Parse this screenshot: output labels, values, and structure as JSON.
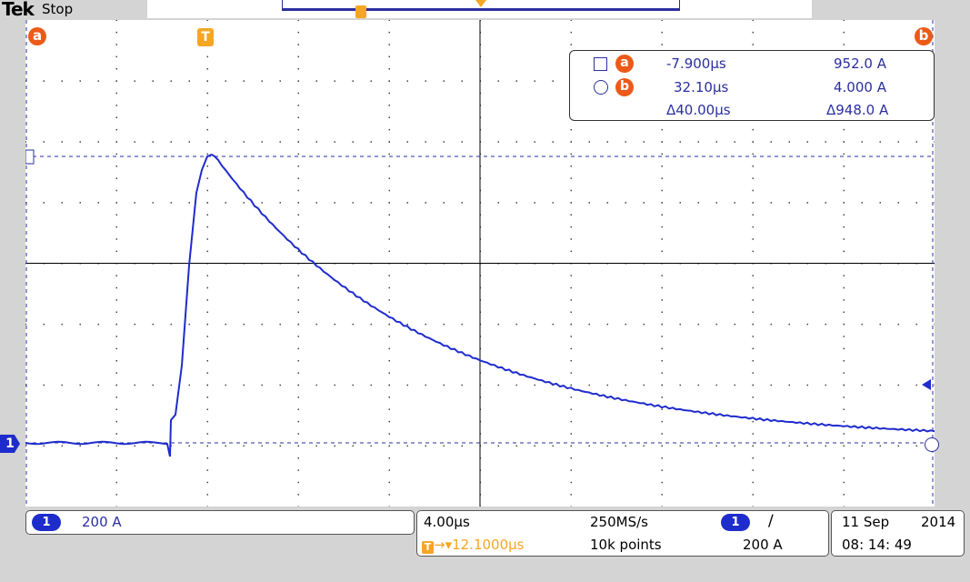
{
  "header": {
    "brand": "Tek",
    "status": "Stop"
  },
  "graticule": {
    "cursor_a_marker": "a",
    "cursor_b_marker": "b",
    "trigger_marker": "T",
    "ground_marker": "1"
  },
  "cursor_readout": {
    "a_marker": "a",
    "b_marker": "b",
    "a_time": "-7.900µs",
    "a_value": "952.0 A",
    "b_time": "32.10µs",
    "b_value": "4.000 A",
    "delta_time": "Δ40.00µs",
    "delta_value": "Δ948.0 A"
  },
  "channel_panel": {
    "channel": "1",
    "scale": "200 A"
  },
  "timebase_panel": {
    "time_per_div": "4.00µs",
    "trigger_marker": "T",
    "trigger_offset": "→▾12.1000µs",
    "sample_rate": "250MS/s",
    "record_length": "10k points",
    "trigger_channel": "1",
    "trigger_slope": "∕",
    "trigger_level": "200 A"
  },
  "date_panel": {
    "date_day": "11 Sep",
    "date_year": "2014",
    "time": "08: 14: 49"
  },
  "colors": {
    "waveform": "#1f2ccc",
    "cursor": "#2b2f9e",
    "marker_orange": "#ec5a19",
    "trigger_orange": "#f5a623"
  }
}
